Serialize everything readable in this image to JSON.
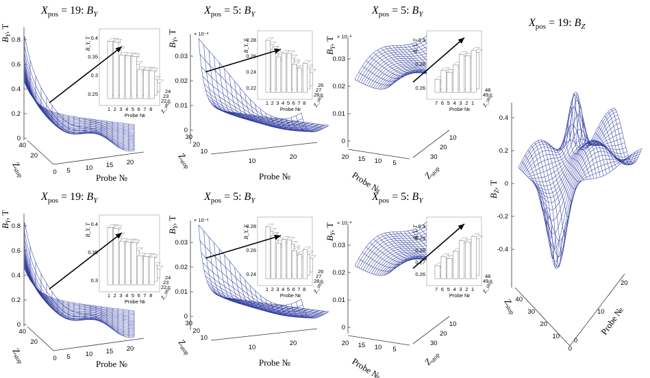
{
  "chart_data": [
    {
      "id": "p1",
      "type": "surface",
      "title": "X_pos = 19: B_Y",
      "zlabel": "B_Y, T",
      "xlabel": "Probe №",
      "ylabel": "Z_stop",
      "zscale": "",
      "zticks": [
        "0.8",
        "0.6",
        "0.4",
        "0.2",
        "0"
      ],
      "xticks": [
        "5",
        "10",
        "15",
        "20"
      ],
      "yticks": [
        "20",
        "40",
        "0"
      ],
      "inset": {
        "zlabel": "B_Y, T",
        "xlabel": "Probe №",
        "ylabel": "Z_stop",
        "zticks": [
          "0.4",
          "0.35",
          "0.3",
          "0.25"
        ],
        "xticks": [
          "1",
          "2",
          "3",
          "4",
          "5",
          "6",
          "7",
          "8"
        ],
        "yticks": [
          "22",
          "23",
          "24"
        ]
      }
    },
    {
      "id": "p2",
      "type": "surface",
      "title": "X_pos = 5: B_Y",
      "zlabel": "B_Y, T",
      "xlabel": "Probe №",
      "ylabel": "Z_stop",
      "zscale": "× 10⁻³",
      "zticks": [
        "0.03",
        "0.02",
        "0.01",
        "0"
      ],
      "xticks": [
        "10",
        "20"
      ],
      "yticks": [
        "10",
        "20",
        "30"
      ],
      "inset": {
        "zlabel": "B_Y, T",
        "xlabel": "Probe №",
        "ylabel": "Z_stop",
        "zticks": [
          "0.28",
          "0.26",
          "0.24",
          "0.22"
        ],
        "xticks": [
          "1",
          "2",
          "3",
          "4",
          "5",
          "6",
          "7",
          "8"
        ],
        "yticks": [
          "28",
          "27",
          "26"
        ]
      }
    },
    {
      "id": "p3",
      "type": "surface",
      "title": "X_pos = 5: B_Y",
      "zlabel": "B_Y, T",
      "xlabel": "Probe №",
      "ylabel": "Z_stop",
      "zscale": "× 10⁻³",
      "zticks": [
        "0.03",
        "0.02",
        "0.01",
        "0"
      ],
      "xticks": [
        "20",
        "15",
        "10",
        "5"
      ],
      "yticks": [
        "30",
        "20",
        "10"
      ],
      "inset": {
        "zlabel": "B_Y, T",
        "xlabel": "Probe №",
        "ylabel": "Z_stop",
        "zticks": [
          "0.3",
          "0.28",
          "0.26"
        ],
        "xticks": [
          "7",
          "6",
          "5",
          "4",
          "3",
          "2",
          "1"
        ],
        "yticks": [
          "49",
          "48"
        ]
      }
    },
    {
      "id": "p4",
      "type": "surface",
      "title": "X_pos = 19: B_Y",
      "zlabel": "B_Y, T",
      "xlabel": "Probe №",
      "ylabel": "Z_stop",
      "zscale": "",
      "zticks": [
        "0.8",
        "0.6",
        "0.4",
        "0.2",
        "0"
      ],
      "xticks": [
        "5",
        "10",
        "15",
        "20"
      ],
      "yticks": [
        "20",
        "40",
        "0"
      ],
      "inset": {
        "zlabel": "B_Y, T",
        "xlabel": "Probe №",
        "ylabel": "Z_stop",
        "zticks": [
          "0.4",
          "0.35",
          "0.3"
        ],
        "xticks": [
          "1",
          "2",
          "3",
          "4",
          "5",
          "6",
          "7",
          "8"
        ],
        "yticks": [
          "22",
          "23",
          "24"
        ]
      }
    },
    {
      "id": "p5",
      "type": "surface",
      "title": "X_pos = 5: B_Y",
      "zlabel": "B_Y, T",
      "xlabel": "Probe №",
      "ylabel": "Z_stop",
      "zscale": "× 10⁻³",
      "zticks": [
        "0.03",
        "0.02",
        "0.01",
        "0"
      ],
      "xticks": [
        "10",
        "20"
      ],
      "yticks": [
        "10",
        "20",
        "30"
      ],
      "inset": {
        "zlabel": "B_Y, T",
        "xlabel": "Probe №",
        "ylabel": "Z_stop",
        "zticks": [
          "0.28",
          "0.26",
          "0.24"
        ],
        "xticks": [
          "1",
          "2",
          "3",
          "4",
          "5",
          "6",
          "7",
          "8"
        ],
        "yticks": [
          "28",
          "27",
          "26"
        ]
      }
    },
    {
      "id": "p6",
      "type": "surface",
      "title": "X_pos = 5: B_Y",
      "zlabel": "B_Y, T",
      "xlabel": "Probe №",
      "ylabel": "Z_stop",
      "zscale": "× 10⁻³",
      "zticks": [
        "0.03",
        "0.02",
        "0.01",
        "0"
      ],
      "xticks": [
        "20",
        "15",
        "10",
        "5"
      ],
      "yticks": [
        "30",
        "20",
        "10"
      ],
      "inset": {
        "zlabel": "B_Y, T",
        "xlabel": "Probe №",
        "ylabel": "Z_stop",
        "zticks": [
          "0.3",
          "0.29",
          "0.28",
          "0.27",
          "0.26"
        ],
        "xticks": [
          "7",
          "6",
          "5",
          "4",
          "3",
          "2",
          "1"
        ],
        "yticks": [
          "49",
          "48"
        ]
      }
    },
    {
      "id": "p7",
      "type": "surface",
      "title": "X_pos = 19: B_Z",
      "zlabel": "B_Z, T",
      "xlabel": "Probe №",
      "ylabel": "Z_stop",
      "zscale": "",
      "zticks": [
        "0.4",
        "0.2",
        "0",
        "-0.2",
        "-0.4"
      ],
      "xticks": [
        "0",
        "10",
        "20"
      ],
      "yticks": [
        "0",
        "10",
        "20",
        "30",
        "40"
      ]
    }
  ],
  "colors": {
    "mesh": "#2e3a9e",
    "axis": "#333333",
    "inset_bar": "#888888",
    "arrow": "#000000"
  }
}
